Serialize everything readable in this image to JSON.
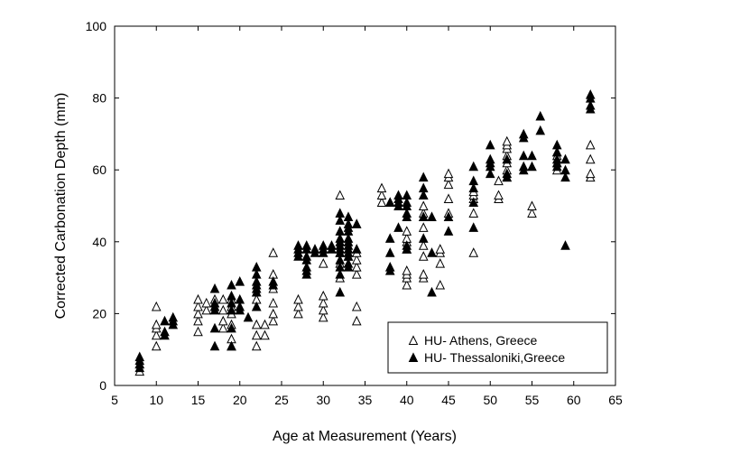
{
  "chart_data": {
    "type": "scatter",
    "title": "",
    "xlabel": "Age at Measurement (Years)",
    "ylabel": "Corrected Carbonation Depth (mm)",
    "xlim": [
      5,
      65
    ],
    "ylim": [
      0,
      100
    ],
    "xticks": [
      "5",
      "10",
      "15",
      "20",
      "25",
      "30",
      "35",
      "40",
      "45",
      "50",
      "55",
      "60",
      "65"
    ],
    "yticks": [
      "0",
      "20",
      "40",
      "60",
      "80",
      "100"
    ],
    "grid": false,
    "legend_position": "bottom-right",
    "series": [
      {
        "name": "HU- Athens, Greece",
        "marker": "open-triangle",
        "color": "#000000",
        "points": [
          [
            8,
            4
          ],
          [
            8,
            6
          ],
          [
            10,
            11
          ],
          [
            10,
            14
          ],
          [
            10,
            16
          ],
          [
            10,
            17
          ],
          [
            10,
            22
          ],
          [
            15,
            15
          ],
          [
            15,
            18
          ],
          [
            15,
            20
          ],
          [
            15,
            22
          ],
          [
            15,
            24
          ],
          [
            16,
            21
          ],
          [
            16,
            23
          ],
          [
            17,
            22
          ],
          [
            17,
            24
          ],
          [
            18,
            16
          ],
          [
            18,
            18
          ],
          [
            18,
            21
          ],
          [
            18,
            24
          ],
          [
            19,
            11
          ],
          [
            19,
            13
          ],
          [
            19,
            17
          ],
          [
            19,
            20
          ],
          [
            19,
            22
          ],
          [
            19,
            24
          ],
          [
            22,
            11
          ],
          [
            22,
            14
          ],
          [
            22,
            17
          ],
          [
            22,
            22
          ],
          [
            22,
            24
          ],
          [
            22,
            26
          ],
          [
            23,
            14
          ],
          [
            23,
            17
          ],
          [
            24,
            18
          ],
          [
            24,
            20
          ],
          [
            24,
            23
          ],
          [
            24,
            27
          ],
          [
            24,
            31
          ],
          [
            24,
            37
          ],
          [
            27,
            20
          ],
          [
            27,
            22
          ],
          [
            27,
            24
          ],
          [
            30,
            19
          ],
          [
            30,
            21
          ],
          [
            30,
            23
          ],
          [
            30,
            25
          ],
          [
            30,
            34
          ],
          [
            32,
            30
          ],
          [
            32,
            34
          ],
          [
            32,
            37
          ],
          [
            32,
            53
          ],
          [
            33,
            36
          ],
          [
            34,
            18
          ],
          [
            34,
            22
          ],
          [
            34,
            31
          ],
          [
            34,
            33
          ],
          [
            34,
            35
          ],
          [
            34,
            37
          ],
          [
            37,
            51
          ],
          [
            37,
            53
          ],
          [
            37,
            55
          ],
          [
            38,
            51
          ],
          [
            40,
            28
          ],
          [
            40,
            30
          ],
          [
            40,
            31
          ],
          [
            40,
            32
          ],
          [
            40,
            38
          ],
          [
            40,
            40
          ],
          [
            40,
            41
          ],
          [
            40,
            43
          ],
          [
            42,
            30
          ],
          [
            42,
            31
          ],
          [
            42,
            36
          ],
          [
            42,
            39
          ],
          [
            42,
            44
          ],
          [
            42,
            47
          ],
          [
            42,
            48
          ],
          [
            42,
            50
          ],
          [
            42,
            53
          ],
          [
            44,
            28
          ],
          [
            44,
            34
          ],
          [
            44,
            37
          ],
          [
            44,
            38
          ],
          [
            45,
            48
          ],
          [
            45,
            52
          ],
          [
            45,
            56
          ],
          [
            45,
            58
          ],
          [
            45,
            59
          ],
          [
            48,
            37
          ],
          [
            48,
            48
          ],
          [
            48,
            52
          ],
          [
            48,
            53
          ],
          [
            48,
            54
          ],
          [
            51,
            52
          ],
          [
            51,
            53
          ],
          [
            51,
            57
          ],
          [
            52,
            58
          ],
          [
            52,
            60
          ],
          [
            52,
            62
          ],
          [
            52,
            64
          ],
          [
            52,
            66
          ],
          [
            52,
            67
          ],
          [
            52,
            68
          ],
          [
            55,
            48
          ],
          [
            55,
            50
          ],
          [
            58,
            60
          ],
          [
            58,
            62
          ],
          [
            58,
            64
          ],
          [
            58,
            65
          ],
          [
            62,
            58
          ],
          [
            62,
            59
          ],
          [
            62,
            63
          ],
          [
            62,
            67
          ]
        ]
      },
      {
        "name": "HU- Thessaloniki,Greece",
        "marker": "filled-triangle",
        "color": "#000000",
        "points": [
          [
            8,
            5
          ],
          [
            8,
            6
          ],
          [
            8,
            7
          ],
          [
            8,
            8
          ],
          [
            11,
            14
          ],
          [
            11,
            15
          ],
          [
            11,
            18
          ],
          [
            12,
            17
          ],
          [
            12,
            18
          ],
          [
            12,
            19
          ],
          [
            17,
            11
          ],
          [
            17,
            16
          ],
          [
            17,
            21
          ],
          [
            17,
            22
          ],
          [
            17,
            23
          ],
          [
            17,
            27
          ],
          [
            19,
            11
          ],
          [
            19,
            16
          ],
          [
            19,
            21
          ],
          [
            19,
            23
          ],
          [
            19,
            25
          ],
          [
            19,
            28
          ],
          [
            20,
            21
          ],
          [
            20,
            22
          ],
          [
            20,
            24
          ],
          [
            20,
            29
          ],
          [
            21,
            19
          ],
          [
            22,
            22
          ],
          [
            22,
            26
          ],
          [
            22,
            27
          ],
          [
            22,
            28
          ],
          [
            22,
            29
          ],
          [
            22,
            31
          ],
          [
            22,
            33
          ],
          [
            24,
            28
          ],
          [
            24,
            29
          ],
          [
            27,
            36
          ],
          [
            27,
            37
          ],
          [
            27,
            38
          ],
          [
            27,
            39
          ],
          [
            28,
            31
          ],
          [
            28,
            32
          ],
          [
            28,
            33
          ],
          [
            28,
            35
          ],
          [
            28,
            36
          ],
          [
            28,
            38
          ],
          [
            28,
            39
          ],
          [
            29,
            37
          ],
          [
            29,
            38
          ],
          [
            30,
            37
          ],
          [
            30,
            38
          ],
          [
            30,
            39
          ],
          [
            31,
            38
          ],
          [
            31,
            39
          ],
          [
            32,
            26
          ],
          [
            32,
            31
          ],
          [
            32,
            33
          ],
          [
            32,
            35
          ],
          [
            32,
            37
          ],
          [
            32,
            38
          ],
          [
            32,
            39
          ],
          [
            32,
            40
          ],
          [
            32,
            41
          ],
          [
            32,
            43
          ],
          [
            32,
            46
          ],
          [
            32,
            48
          ],
          [
            33,
            33
          ],
          [
            33,
            34
          ],
          [
            33,
            36
          ],
          [
            33,
            37
          ],
          [
            33,
            38
          ],
          [
            33,
            39
          ],
          [
            33,
            40
          ],
          [
            33,
            41
          ],
          [
            33,
            43
          ],
          [
            33,
            44
          ],
          [
            33,
            45
          ],
          [
            33,
            47
          ],
          [
            34,
            38
          ],
          [
            34,
            45
          ],
          [
            38,
            32
          ],
          [
            38,
            33
          ],
          [
            38,
            37
          ],
          [
            38,
            41
          ],
          [
            38,
            51
          ],
          [
            39,
            44
          ],
          [
            39,
            50
          ],
          [
            39,
            51
          ],
          [
            39,
            52
          ],
          [
            39,
            53
          ],
          [
            40,
            38
          ],
          [
            40,
            39
          ],
          [
            40,
            47
          ],
          [
            40,
            48
          ],
          [
            40,
            50
          ],
          [
            40,
            51
          ],
          [
            40,
            53
          ],
          [
            42,
            41
          ],
          [
            42,
            47
          ],
          [
            42,
            53
          ],
          [
            42,
            55
          ],
          [
            42,
            58
          ],
          [
            43,
            26
          ],
          [
            43,
            37
          ],
          [
            43,
            47
          ],
          [
            45,
            43
          ],
          [
            45,
            47
          ],
          [
            48,
            44
          ],
          [
            48,
            51
          ],
          [
            48,
            55
          ],
          [
            48,
            57
          ],
          [
            48,
            61
          ],
          [
            50,
            59
          ],
          [
            50,
            61
          ],
          [
            50,
            62
          ],
          [
            50,
            63
          ],
          [
            50,
            67
          ],
          [
            52,
            58
          ],
          [
            52,
            59
          ],
          [
            52,
            63
          ],
          [
            54,
            60
          ],
          [
            54,
            61
          ],
          [
            54,
            64
          ],
          [
            54,
            69
          ],
          [
            54,
            70
          ],
          [
            55,
            61
          ],
          [
            55,
            64
          ],
          [
            56,
            71
          ],
          [
            56,
            75
          ],
          [
            58,
            61
          ],
          [
            58,
            62
          ],
          [
            58,
            63
          ],
          [
            58,
            65
          ],
          [
            58,
            67
          ],
          [
            59,
            39
          ],
          [
            59,
            58
          ],
          [
            59,
            60
          ],
          [
            59,
            63
          ],
          [
            62,
            77
          ],
          [
            62,
            78
          ],
          [
            62,
            80
          ],
          [
            62,
            81
          ]
        ]
      }
    ]
  }
}
